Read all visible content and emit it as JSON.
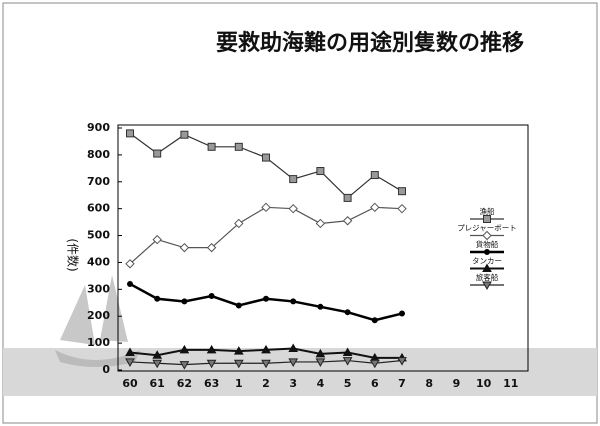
{
  "chart_data": {
    "type": "line",
    "title": "要救助海難の用途別隻数の推移",
    "ylabel": "(件数)",
    "categories": [
      "60",
      "61",
      "62",
      "63",
      "1",
      "2",
      "3",
      "4",
      "5",
      "6",
      "7",
      "8",
      "9",
      "10",
      "11"
    ],
    "ylim": [
      0,
      900
    ],
    "yticks": [
      0,
      100,
      200,
      300,
      400,
      500,
      600,
      700,
      800,
      900
    ],
    "legend": "right",
    "series": [
      {
        "name": "漁船",
        "color": "#333333",
        "marker": "square",
        "values": [
          880,
          805,
          875,
          830,
          830,
          790,
          710,
          740,
          640,
          725,
          665,
          null,
          null,
          null,
          null
        ]
      },
      {
        "name": "プレジャーボート",
        "color": "#555555",
        "marker": "diamond",
        "values": [
          395,
          485,
          455,
          455,
          545,
          605,
          600,
          545,
          555,
          605,
          600,
          null,
          null,
          null,
          null
        ]
      },
      {
        "name": "貨物船",
        "color": "#000000",
        "marker": "dot",
        "values": [
          320,
          265,
          255,
          275,
          240,
          265,
          255,
          235,
          215,
          185,
          210,
          null,
          null,
          null,
          null
        ]
      },
      {
        "name": "タンカー",
        "color": "#111111",
        "marker": "triangle",
        "values": [
          65,
          55,
          75,
          75,
          70,
          75,
          80,
          60,
          65,
          45,
          45,
          null,
          null,
          null,
          null
        ]
      },
      {
        "name": "旅客船",
        "color": "#222222",
        "marker": "triangle-down",
        "values": [
          30,
          25,
          20,
          25,
          25,
          25,
          30,
          30,
          35,
          25,
          35,
          null,
          null,
          null,
          null
        ]
      }
    ]
  }
}
